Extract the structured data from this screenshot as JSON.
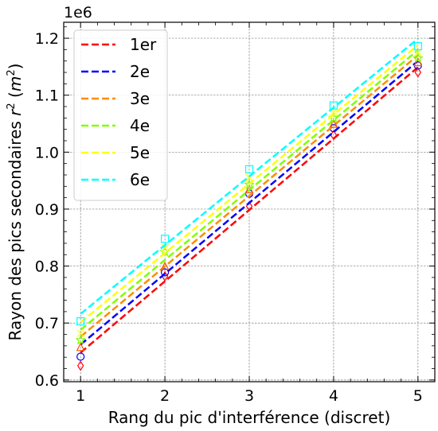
{
  "chart_data": {
    "type": "line",
    "xlabel": "Rang du pic d'interférence (discret)",
    "ylabel_text": "Rayon des pics secondaires ",
    "ylabel_math": "r",
    "ylabel_sup": "2",
    "ylabel_unit_open": " (",
    "ylabel_unit_math": "m",
    "ylabel_unit_sup": "2",
    "ylabel_unit_close": ")",
    "offset_text": "1e6",
    "xlim": [
      0.8,
      5.2
    ],
    "ylim": [
      597000,
      1228000
    ],
    "xticks": [
      1,
      2,
      3,
      4,
      5
    ],
    "xtick_labels": [
      "1",
      "2",
      "3",
      "4",
      "5"
    ],
    "yticks": [
      600000,
      700000,
      800000,
      900000,
      1000000,
      1100000,
      1200000
    ],
    "ytick_labels": [
      "0.6",
      "0.7",
      "0.8",
      "0.9",
      "1.0",
      "1.1",
      "1.2"
    ],
    "grid": true,
    "legend_position": "top-left",
    "x": [
      1,
      2,
      3,
      4,
      5
    ],
    "series": [
      {
        "name": "1er",
        "color": "#ff0000",
        "fit": [
          648000,
          1149000
        ],
        "points": [
          625000,
          782000,
          905000,
          1030000,
          1140000
        ],
        "marker": "diamond",
        "marker_color": "#ff0000"
      },
      {
        "name": "2e",
        "color": "#0000ff",
        "fit": [
          662000,
          1160000
        ],
        "points": [
          641000,
          789000,
          927000,
          1042000,
          1152000
        ],
        "marker": "circle",
        "marker_color": "#0000ff"
      },
      {
        "name": "3e",
        "color": "#ff8c00",
        "fit": [
          676000,
          1170000
        ],
        "points": [
          658000,
          800000,
          935000,
          1050000,
          1158000
        ],
        "marker": "triangle",
        "marker_color": "#ff5500"
      },
      {
        "name": "4e",
        "color": "#7fff00",
        "fit": [
          688000,
          1179000
        ],
        "points": [
          670000,
          825000,
          943000,
          1060000,
          1165000
        ],
        "marker": "star",
        "marker_color": "#7fff00"
      },
      {
        "name": "5e",
        "color": "#ffff00",
        "fit": [
          701000,
          1188000
        ],
        "points": [
          682000,
          832000,
          955000,
          1070000,
          1175000
        ],
        "marker": "cross",
        "marker_color": "#ffff00"
      },
      {
        "name": "6e",
        "color": "#00ffff",
        "fit": [
          716000,
          1199000
        ],
        "points": [
          703000,
          848000,
          970000,
          1082000,
          1186000
        ],
        "marker": "square",
        "marker_color": "#00ffff"
      }
    ]
  }
}
